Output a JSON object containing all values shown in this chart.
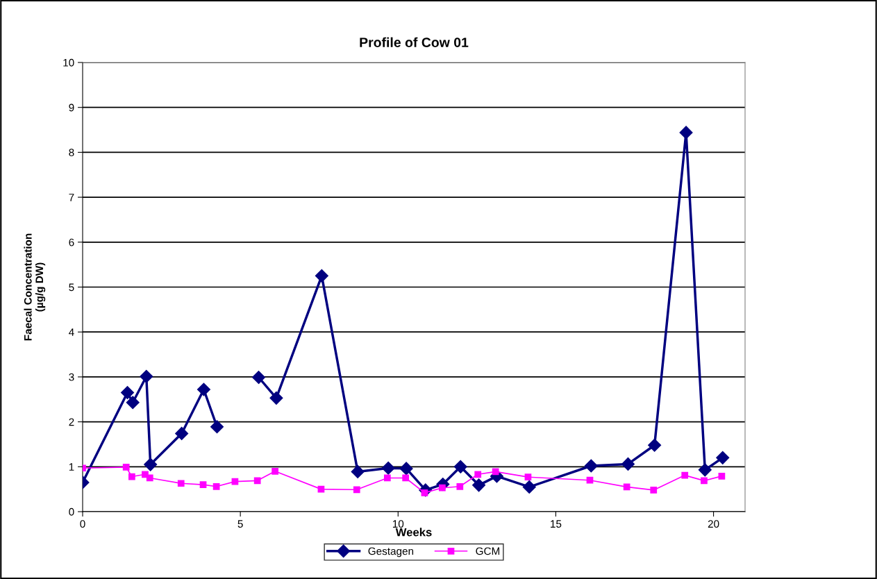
{
  "chart_data": {
    "type": "line",
    "title": "Profile of Cow 01",
    "xlabel": "Weeks",
    "ylabel": "Faecal Concentration\n(µg/g DW)",
    "xlim": [
      0,
      21
    ],
    "xticks": [
      0,
      5,
      10,
      15,
      20
    ],
    "ylim": [
      0,
      10
    ],
    "yticks": [
      0,
      1,
      2,
      3,
      4,
      5,
      6,
      7,
      8,
      9,
      10
    ],
    "grid": "y",
    "legend": "bottom",
    "series": [
      {
        "name": "Gestagen",
        "color": "#000080",
        "marker": "diamond",
        "x": [
          0,
          1.42,
          1.59,
          2.02,
          2.15,
          3.14,
          3.84,
          4.26,
          4.9,
          5.58,
          6.14,
          7.58,
          8.72,
          9.69,
          10.26,
          10.87,
          11.42,
          11.98,
          12.56,
          13.13,
          14.16,
          16.12,
          17.29,
          18.13,
          19.13,
          19.73,
          20.29
        ],
        "values": [
          0.65,
          2.65,
          2.43,
          3.01,
          1.05,
          1.74,
          2.72,
          1.89,
          null,
          2.99,
          2.53,
          5.25,
          0.89,
          0.97,
          0.96,
          0.48,
          0.61,
          1.0,
          0.59,
          0.79,
          0.55,
          1.02,
          1.06,
          1.48,
          8.44,
          0.93,
          1.2
        ]
      },
      {
        "name": "GCM",
        "color": "#ff00ff",
        "marker": "square",
        "x": [
          0,
          1.38,
          1.56,
          1.98,
          2.13,
          3.12,
          3.82,
          4.24,
          4.83,
          5.54,
          6.1,
          7.56,
          8.69,
          9.66,
          10.24,
          10.84,
          11.4,
          11.96,
          12.53,
          13.09,
          14.12,
          16.08,
          17.25,
          18.1,
          19.09,
          19.7,
          20.26
        ],
        "values": [
          0.97,
          0.99,
          0.78,
          0.83,
          0.75,
          0.63,
          0.6,
          0.56,
          0.67,
          0.69,
          0.9,
          0.5,
          0.49,
          0.75,
          0.75,
          0.42,
          0.53,
          0.56,
          0.83,
          0.89,
          0.77,
          0.7,
          0.55,
          0.48,
          0.81,
          0.69,
          0.79
        ]
      }
    ]
  }
}
